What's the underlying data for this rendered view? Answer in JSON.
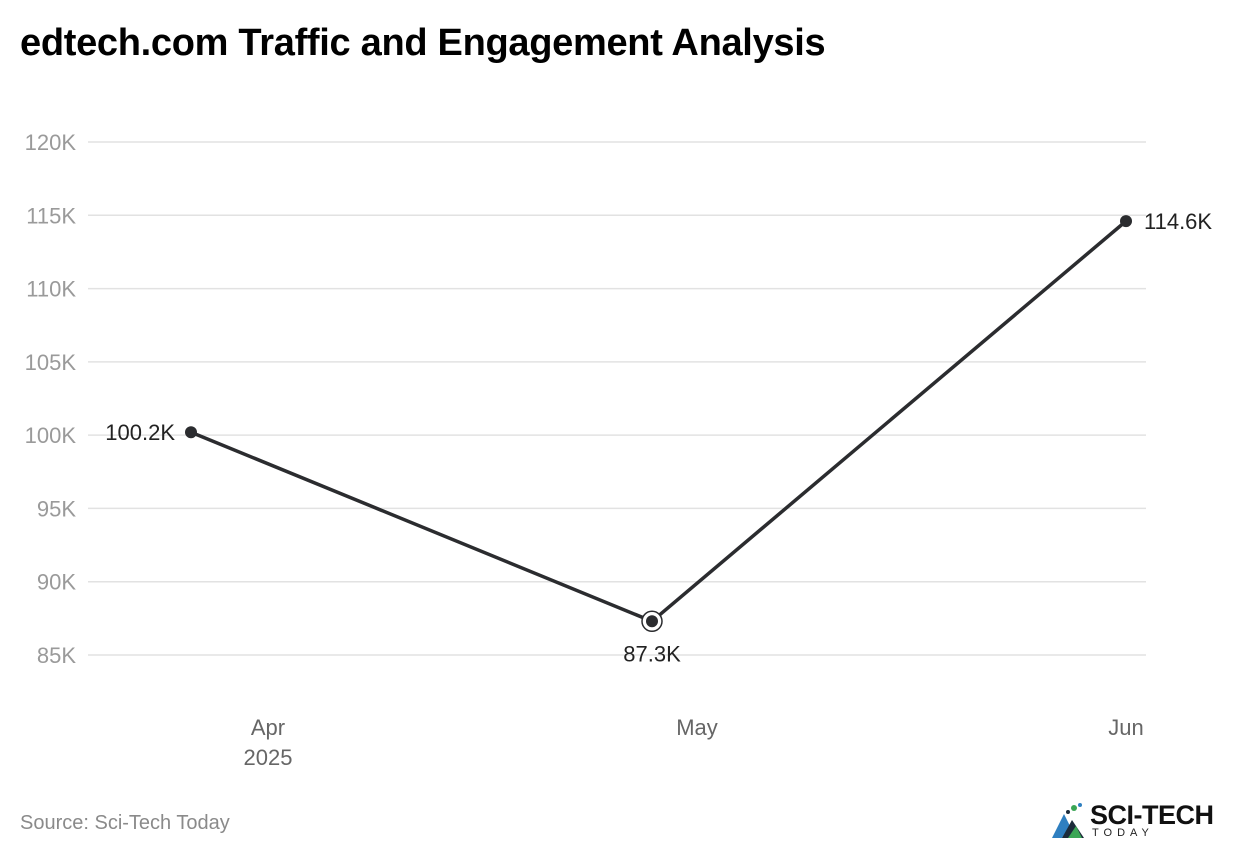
{
  "title": "edtech.com Traffic and Engagement Analysis",
  "source": "Source: Sci-Tech Today",
  "logo": {
    "name": "SCI-TECH",
    "sub": "TODAY"
  },
  "colors": {
    "line": "#2b2c2f",
    "grid": "#e2e2e2",
    "tick": "#9a9a9a"
  },
  "chart_data": {
    "type": "line",
    "x": [
      "Apr 2025",
      "May",
      "Jun"
    ],
    "x_tick_labels": [
      [
        "Apr",
        "2025"
      ],
      [
        "May"
      ],
      [
        "Jun"
      ]
    ],
    "series": [
      {
        "values": [
          100200,
          87300,
          114600
        ],
        "data_labels": [
          "100.2K",
          "87.3K",
          "114.6K"
        ]
      }
    ],
    "y_ticks": [
      85000,
      90000,
      95000,
      100000,
      105000,
      110000,
      115000,
      120000
    ],
    "y_tick_labels": [
      "85K",
      "90K",
      "95K",
      "100K",
      "105K",
      "110K",
      "115K",
      "120K"
    ],
    "ylim": [
      85000,
      120000
    ],
    "grid": true,
    "highlighted_point": "May"
  }
}
